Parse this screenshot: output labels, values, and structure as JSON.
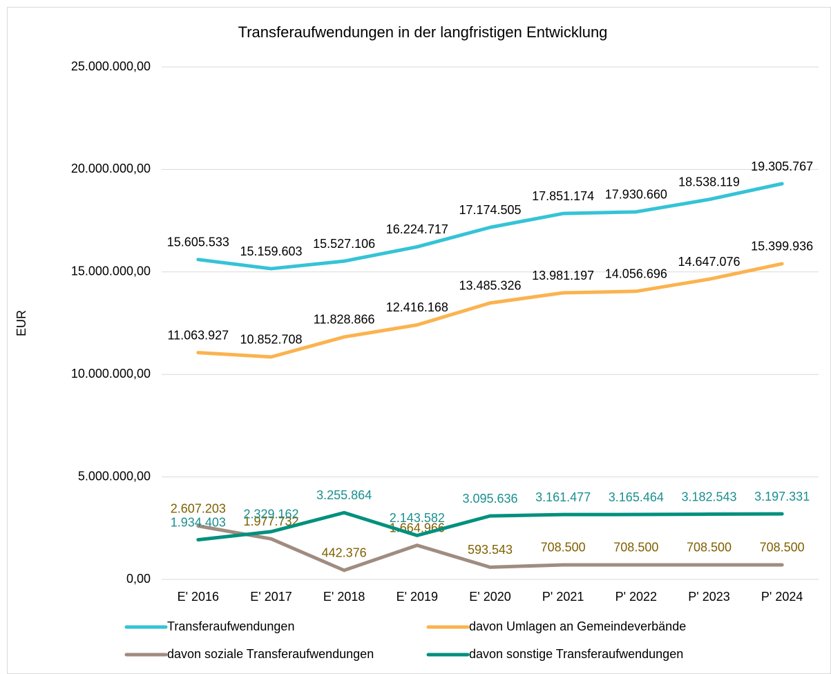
{
  "chart_data": {
    "type": "line",
    "title": "Transferaufwendungen in der langfristigen Entwicklung",
    "y_label": "EUR",
    "categories": [
      "E' 2016",
      "E' 2017",
      "E' 2018",
      "E' 2019",
      "E' 2020",
      "P' 2021",
      "P' 2022",
      "P' 2023",
      "P' 2024"
    ],
    "ylim": [
      0,
      25000000
    ],
    "yticks": [
      {
        "value": 0,
        "label": "0,00"
      },
      {
        "value": 5000000,
        "label": "5.000.000,00"
      },
      {
        "value": 10000000,
        "label": "10.000.000,00"
      },
      {
        "value": 15000000,
        "label": "15.000.000,00"
      },
      {
        "value": 20000000,
        "label": "20.000.000,00"
      },
      {
        "value": 25000000,
        "label": "25.000.000,00"
      }
    ],
    "grid": true,
    "legend": "bottom",
    "series": [
      {
        "name": "Transferaufwendungen",
        "color": "#35c3d6",
        "label_color": "#000000",
        "values": [
          15605533,
          15159603,
          15527106,
          16224717,
          17174505,
          17851174,
          17930660,
          18538119,
          19305767
        ],
        "value_labels": [
          "15.605.533",
          "15.159.603",
          "15.527.106",
          "16.224.717",
          "17.174.505",
          "17.851.174",
          "17.930.660",
          "18.538.119",
          "19.305.767"
        ]
      },
      {
        "name": "davon Umlagen an Gemeindeverbände",
        "color": "#fbb34f",
        "label_color": "#000000",
        "values": [
          11063927,
          10852708,
          11828866,
          12416168,
          13485326,
          13981197,
          14056696,
          14647076,
          15399936
        ],
        "value_labels": [
          "11.063.927",
          "10.852.708",
          "11.828.866",
          "12.416.168",
          "13.485.326",
          "13.981.197",
          "14.056.696",
          "14.647.076",
          "15.399.936"
        ]
      },
      {
        "name": "davon soziale Transferaufwendungen",
        "color": "#a08c80",
        "label_color": "#7f6000",
        "values": [
          2607203,
          1977732,
          442376,
          1664966,
          593543,
          708500,
          708500,
          708500,
          708500
        ],
        "value_labels": [
          "2.607.203",
          "1.977.732",
          "442.376",
          "1.664.966",
          "593.543",
          "708.500",
          "708.500",
          "708.500",
          "708.500"
        ]
      },
      {
        "name": "davon sonstige Transferaufwendungen",
        "color": "#00907e",
        "label_color": "#1a8f8f",
        "values": [
          1934403,
          2329162,
          3255864,
          2143582,
          3095636,
          3161477,
          3165464,
          3182543,
          3197331
        ],
        "value_labels": [
          "1.934.403",
          "2.329.162",
          "3.255.864",
          "2.143.582",
          "3.095.636",
          "3.161.477",
          "3.165.464",
          "3.182.543",
          "3.197.331"
        ]
      }
    ]
  }
}
